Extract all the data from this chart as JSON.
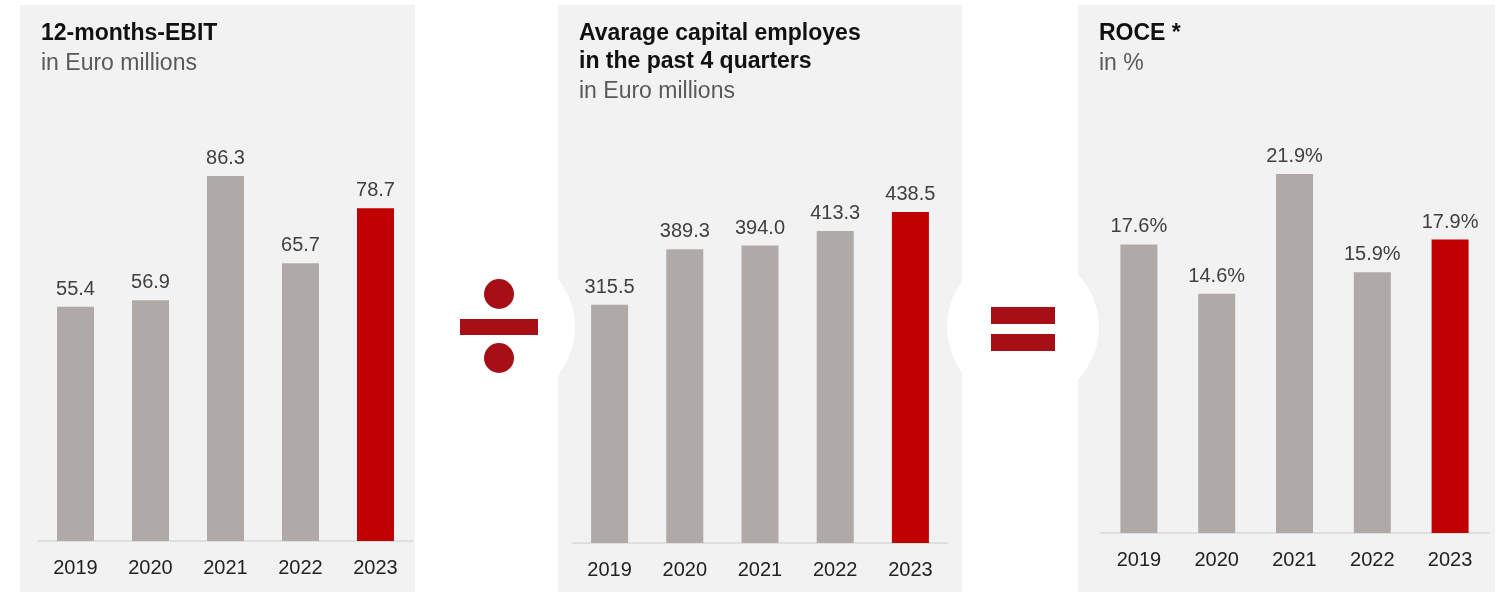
{
  "chart_data": [
    {
      "type": "bar",
      "title": "12-months-EBIT",
      "subtitle": "in Euro millions",
      "categories": [
        "2019",
        "2020",
        "2021",
        "2022",
        "2023"
      ],
      "values": [
        55.4,
        56.9,
        86.3,
        65.7,
        78.7
      ],
      "value_labels": [
        "55.4",
        "56.9",
        "86.3",
        "65.7",
        "78.7"
      ],
      "colors": [
        "#afaaa8",
        "#afaaa8",
        "#afaaa8",
        "#afaaa8",
        "#c00000"
      ]
    },
    {
      "type": "bar",
      "title": "Avarage capital employes in the past 4 quarters",
      "subtitle": "in Euro millions",
      "categories": [
        "2019",
        "2020",
        "2021",
        "2022",
        "2023"
      ],
      "values": [
        315.5,
        389.3,
        394.0,
        413.3,
        438.5
      ],
      "value_labels": [
        "315.5",
        "389.3",
        "394.0",
        "413.3",
        "438.5"
      ],
      "colors": [
        "#afaaa8",
        "#afaaa8",
        "#afaaa8",
        "#afaaa8",
        "#c00000"
      ]
    },
    {
      "type": "bar",
      "title": "ROCE *",
      "subtitle": "in %",
      "categories": [
        "2019",
        "2020",
        "2021",
        "2022",
        "2023"
      ],
      "values": [
        17.6,
        14.6,
        21.9,
        15.9,
        17.9
      ],
      "value_labels": [
        "17.6%",
        "14.6%",
        "21.9%",
        "15.9%",
        "17.9%"
      ],
      "colors": [
        "#afaaa8",
        "#afaaa8",
        "#afaaa8",
        "#afaaa8",
        "#c00000"
      ]
    }
  ]
}
